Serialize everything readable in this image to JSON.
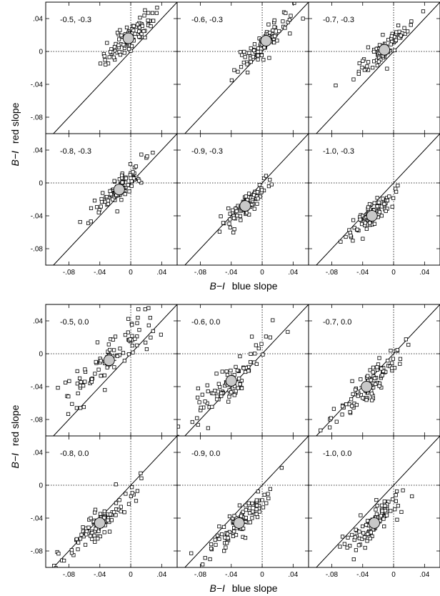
{
  "figure": {
    "ylabel_var": "B−I",
    "ylabel_text": "red slope",
    "xlabel_var": "B−I",
    "xlabel_text": "blue slope"
  },
  "chart_data": [
    {
      "type": "scatter",
      "title": "",
      "xlabel": "B−I  blue slope",
      "ylabel": "B−I  red slope",
      "xlim": [
        -0.11,
        0.06
      ],
      "ylim": [
        -0.1,
        0.06
      ],
      "xticks": [
        -0.08,
        -0.04,
        0,
        0.04
      ],
      "xtick_labels": [
        "-.08",
        "-.04",
        "0",
        ".04"
      ],
      "yticks": [
        -0.08,
        -0.04,
        0,
        0.04
      ],
      "ytick_labels": [
        "-.08",
        "-.04",
        "0",
        ".04"
      ],
      "reference_lines": [
        "y = x (solid diagonal)",
        "x = 0 (dotted)",
        "y = 0 (dotted)"
      ],
      "panels": [
        {
          "label": "-0.5, -0.3",
          "center": [
            -0.003,
            0.016
          ],
          "spread": 0.018,
          "n": 90
        },
        {
          "label": "-0.6, -0.3",
          "center": [
            0.005,
            0.013
          ],
          "spread": 0.018,
          "n": 85
        },
        {
          "label": "-0.7, -0.3",
          "center": [
            -0.012,
            0.002
          ],
          "spread": 0.016,
          "n": 90
        },
        {
          "label": "-0.8, -0.3",
          "center": [
            -0.015,
            -0.008
          ],
          "spread": 0.016,
          "n": 95
        },
        {
          "label": "-0.9, -0.3",
          "center": [
            -0.022,
            -0.028
          ],
          "spread": 0.016,
          "n": 95
        },
        {
          "label": "-1.0, -0.3",
          "center": [
            -0.028,
            -0.04
          ],
          "spread": 0.014,
          "n": 85
        }
      ]
    },
    {
      "type": "scatter",
      "title": "",
      "xlabel": "B−I  blue slope",
      "ylabel": "B−I  red slope",
      "xlim": [
        -0.11,
        0.06
      ],
      "ylim": [
        -0.1,
        0.06
      ],
      "xticks": [
        -0.08,
        -0.04,
        0,
        0.04
      ],
      "xtick_labels": [
        "-.08",
        "-.04",
        "0",
        ".04"
      ],
      "yticks": [
        -0.08,
        -0.04,
        0,
        0.04
      ],
      "ytick_labels": [
        "-.08",
        "-.04",
        "0",
        ".04"
      ],
      "reference_lines": [
        "y = x (solid diagonal)",
        "x = 0 (dotted)",
        "y = 0 (dotted)"
      ],
      "panels": [
        {
          "label": "-0.5, 0.0",
          "center": [
            -0.028,
            -0.008
          ],
          "spread": 0.03,
          "n": 95
        },
        {
          "label": "-0.6, 0.0",
          "center": [
            -0.04,
            -0.033
          ],
          "spread": 0.024,
          "n": 95
        },
        {
          "label": "-0.7, 0.0",
          "center": [
            -0.035,
            -0.04
          ],
          "spread": 0.022,
          "n": 100
        },
        {
          "label": "-0.8, 0.0",
          "center": [
            -0.04,
            -0.046
          ],
          "spread": 0.02,
          "n": 100
        },
        {
          "label": "-0.9, 0.0",
          "center": [
            -0.03,
            -0.046
          ],
          "spread": 0.02,
          "n": 100
        },
        {
          "label": "-1.0, 0.0",
          "center": [
            -0.025,
            -0.046
          ],
          "spread": 0.018,
          "n": 95
        }
      ]
    }
  ]
}
